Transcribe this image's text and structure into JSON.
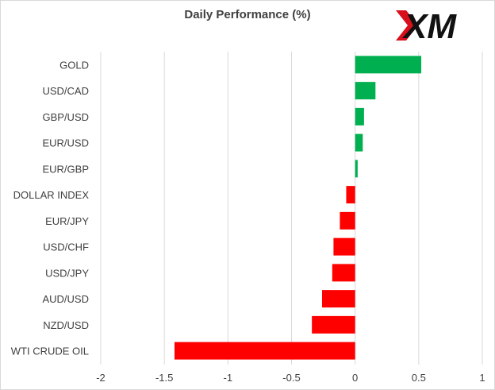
{
  "chart_data": {
    "type": "bar",
    "orientation": "horizontal",
    "title": "Daily Performance (%)",
    "categories": [
      "GOLD",
      "USD/CAD",
      "GBP/USD",
      "EUR/USD",
      "EUR/GBP",
      "DOLLAR INDEX",
      "EUR/JPY",
      "USD/CHF",
      "USD/JPY",
      "AUD/USD",
      "NZD/USD",
      "WTI CRUDE OIL"
    ],
    "values": [
      0.52,
      0.16,
      0.07,
      0.06,
      0.02,
      -0.07,
      -0.12,
      -0.17,
      -0.18,
      -0.26,
      -0.34,
      -1.42
    ],
    "xlim": [
      -2,
      1
    ],
    "xticks": [
      "-2",
      "-1.5",
      "-1",
      "-0.5",
      "0",
      "0.5",
      "1"
    ],
    "xtick_values": [
      -2,
      -1.5,
      -1,
      -0.5,
      0,
      0.5,
      1
    ],
    "grid": "vertical",
    "colors": {
      "positive": "#00b050",
      "negative": "#ff0000",
      "grid": "#d9d9d9",
      "text": "#404040"
    }
  },
  "logo": {
    "text": "XM",
    "mark_color": "#d8101b",
    "text_color": "#111111"
  }
}
